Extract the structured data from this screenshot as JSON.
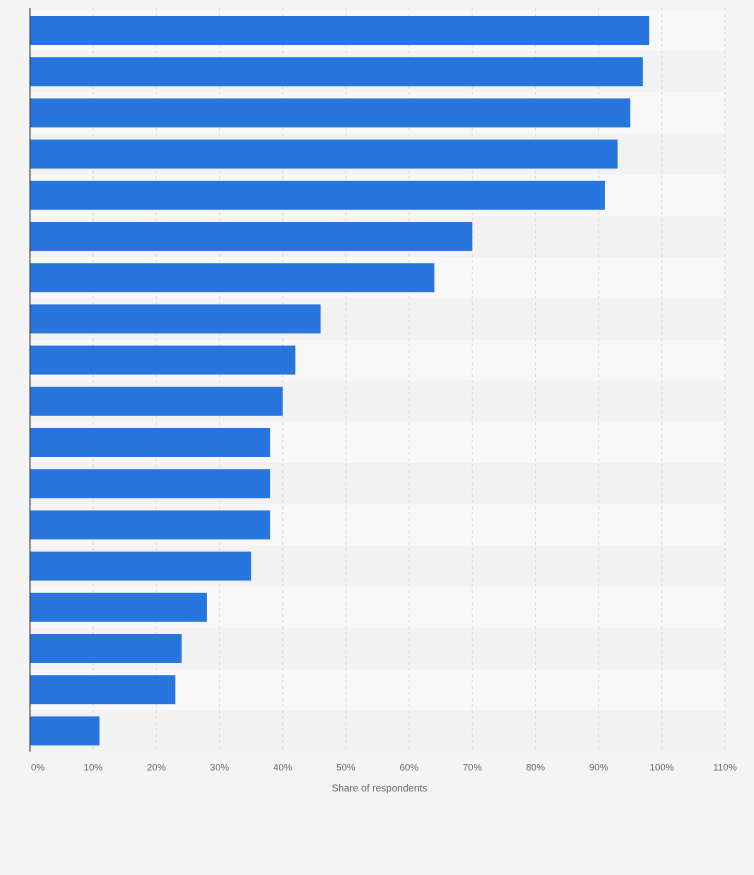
{
  "chart_data": {
    "type": "bar",
    "orientation": "horizontal",
    "categories": [
      "",
      "",
      "",
      "",
      "",
      "",
      "",
      "",
      "",
      "",
      "",
      "",
      "",
      "",
      "",
      "",
      "",
      ""
    ],
    "values": [
      98,
      97,
      95,
      93,
      91,
      70,
      64,
      46,
      42,
      40,
      38,
      38,
      38,
      35,
      28,
      24,
      23,
      11
    ],
    "xlim": [
      0,
      110
    ],
    "x_ticks": [
      "0%",
      "10%",
      "20%",
      "30%",
      "40%",
      "50%",
      "60%",
      "70%",
      "80%",
      "90%",
      "100%",
      "110%"
    ],
    "xlabel": "Share of respondents",
    "grid": "vertical dashed",
    "colors": {
      "bar": "#2876dd",
      "background": "#f4f4f4",
      "band_light": "#f8f8f8",
      "band_dark": "#f2f2f2",
      "grid": "#dcdcdc",
      "axis": "#333333",
      "tick_text": "#666666"
    }
  }
}
